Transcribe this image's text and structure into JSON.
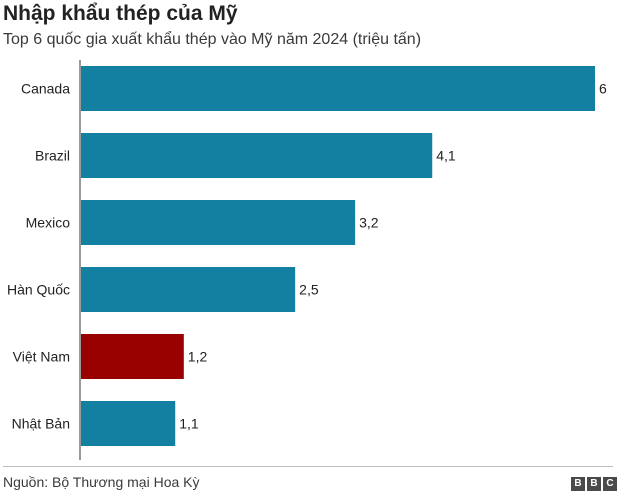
{
  "header": {
    "title": "Nhập khẩu thép của Mỹ",
    "subtitle": "Top 6 quốc gia xuất khẩu thép vào Mỹ năm 2024 (triệu tấn)"
  },
  "chart_data": {
    "type": "bar",
    "orientation": "horizontal",
    "categories": [
      "Canada",
      "Brazil",
      "Mexico",
      "Hàn Quốc",
      "Việt Nam",
      "Nhật Bản"
    ],
    "values": [
      6,
      4.1,
      3.2,
      2.5,
      1.2,
      1.1
    ],
    "value_labels": [
      "6",
      "4,1",
      "3,2",
      "2,5",
      "1,2",
      "1,1"
    ],
    "xlim": [
      0,
      6
    ],
    "colors": [
      "#1380a1",
      "#1380a1",
      "#1380a1",
      "#1380a1",
      "#990000",
      "#1380a1"
    ],
    "grid": false
  },
  "footer": {
    "source": "Nguồn: Bộ Thương mại Hoa Kỳ",
    "logo": [
      "B",
      "B",
      "C"
    ]
  }
}
